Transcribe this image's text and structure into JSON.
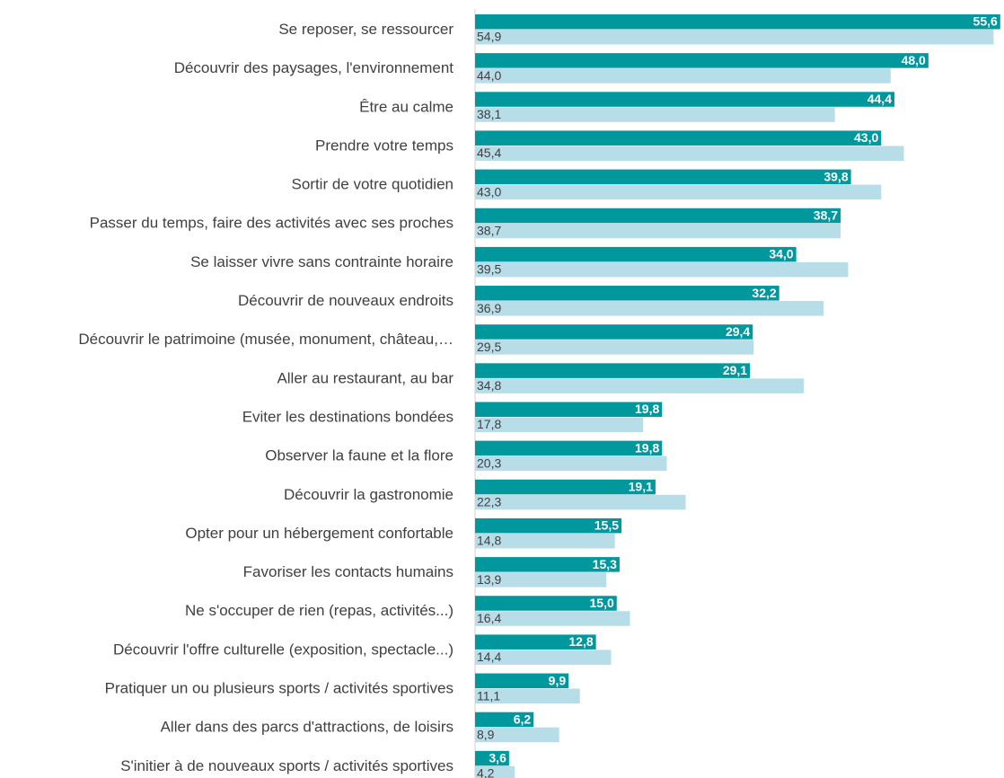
{
  "chart_data": {
    "type": "bar",
    "orientation": "horizontal",
    "categories": [
      "Se reposer, se ressourcer",
      "Découvrir des paysages, l'environnement",
      "Être au calme",
      "Prendre votre temps",
      "Sortir de votre quotidien",
      "Passer du temps, faire des activités avec ses proches",
      "Se laisser vivre sans contrainte horaire",
      "Découvrir de nouveaux endroits",
      "Découvrir le patrimoine (musée, monument, château,…",
      "Aller au restaurant, au bar",
      "Eviter les destinations bondées",
      "Observer la faune et la flore",
      "Découvrir la gastronomie",
      "Opter pour un hébergement confortable",
      "Favoriser les contacts humains",
      "Ne s'occuper de rien (repas, activités...)",
      "Découvrir l'offre culturelle (exposition, spectacle...)",
      "Pratiquer un ou plusieurs sports / activités sportives",
      "Aller dans des parcs d'attractions, de loisirs",
      "S'initier à de nouveaux sports / activités sportives"
    ],
    "series": [
      {
        "color": "#00979d",
        "values": [
          55.6,
          48.0,
          44.4,
          43.0,
          39.8,
          38.7,
          34.0,
          32.2,
          29.4,
          29.1,
          19.8,
          19.8,
          19.1,
          15.5,
          15.3,
          15.0,
          12.8,
          9.9,
          6.2,
          3.6
        ],
        "value_labels": [
          "55,6",
          "48,0",
          "44,4",
          "43,0",
          "39,8",
          "38,7",
          "34,0",
          "32,2",
          "29,4",
          "29,1",
          "19,8",
          "19,8",
          "19,1",
          "15,5",
          "15,3",
          "15,0",
          "12,8",
          "9,9",
          "6,2",
          "3,6"
        ]
      },
      {
        "color": "#b7dde8",
        "values": [
          54.9,
          44.0,
          38.1,
          45.4,
          43.0,
          38.7,
          39.5,
          36.9,
          29.5,
          34.8,
          17.8,
          20.3,
          22.3,
          14.8,
          13.9,
          16.4,
          14.4,
          11.1,
          8.9,
          4.2
        ],
        "value_labels": [
          "54,9",
          "44,0",
          "38,1",
          "45,4",
          "43,0",
          "38,7",
          "39,5",
          "36,9",
          "29,5",
          "34,8",
          "17,8",
          "20,3",
          "22,3",
          "14,8",
          "13,9",
          "16,4",
          "14,4",
          "11,1",
          "8,9",
          "4,2"
        ]
      }
    ],
    "xlim": [
      0,
      56
    ]
  }
}
